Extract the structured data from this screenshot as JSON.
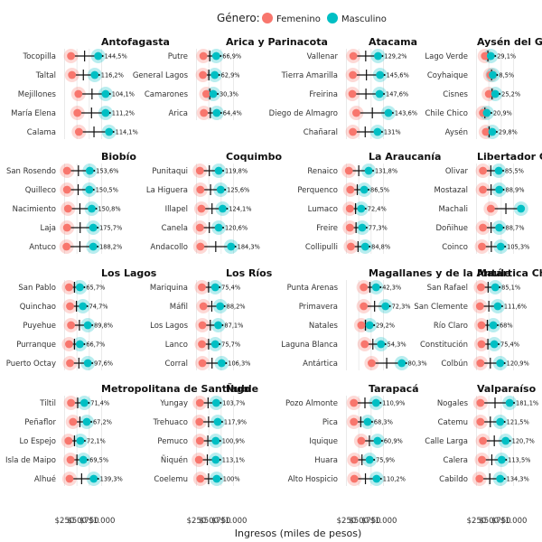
{
  "legend": {
    "title": "Género:",
    "female_label": "Femenino",
    "male_label": "Masculino"
  },
  "colors": {
    "female": "#F8766D",
    "male": "#00BFC4",
    "grid": "#e6e6e6",
    "line": "#111111"
  },
  "chart_data": {
    "type": "dumbbell",
    "xlabel": "Ingresos (miles de pesos)",
    "x_ticks": [
      "$250",
      "$500",
      "$750",
      "$1.000"
    ],
    "panels": [
      {
        "title": "Antofagasta",
        "rows": [
          {
            "label": "Tocopilla",
            "f": 380,
            "m": 930,
            "pct": "144,5%"
          },
          {
            "label": "Taltal",
            "f": 400,
            "m": 860,
            "pct": "116,2%"
          },
          {
            "label": "Mejillones",
            "f": 530,
            "m": 1080,
            "pct": "104,1%"
          },
          {
            "label": "María Elena",
            "f": 510,
            "m": 1080,
            "pct": "111,2%"
          },
          {
            "label": "Calama",
            "f": 540,
            "m": 1150,
            "pct": "114,1%"
          }
        ]
      },
      {
        "title": "Arica y Parinacota",
        "rows": [
          {
            "label": "Putre",
            "f": 390,
            "m": 650,
            "pct": "66,9%"
          },
          {
            "label": "General Lagos",
            "f": 380,
            "m": 620,
            "pct": "62,9%"
          },
          {
            "label": "Camarones",
            "f": 450,
            "m": 590,
            "pct": "30,3%"
          },
          {
            "label": "Arica",
            "f": 400,
            "m": 660,
            "pct": "64,4%"
          }
        ]
      },
      {
        "title": "Atacama",
        "rows": [
          {
            "label": "Vallenar",
            "f": 390,
            "m": 890,
            "pct": "129,2%"
          },
          {
            "label": "Tierra Amarilla",
            "f": 380,
            "m": 930,
            "pct": "145,6%"
          },
          {
            "label": "Freirina",
            "f": 370,
            "m": 920,
            "pct": "147,6%"
          },
          {
            "label": "Diego de Almagro",
            "f": 450,
            "m": 1100,
            "pct": "143,6%"
          },
          {
            "label": "Chañaral",
            "f": 380,
            "m": 880,
            "pct": "131%"
          }
        ]
      },
      {
        "title": "Aysén del General Carlos Ibáñez del Campo",
        "rows": [
          {
            "label": "Lago Verde",
            "f": 420,
            "m": 540,
            "pct": "29,1%"
          },
          {
            "label": "Coyhaique",
            "f": 530,
            "m": 580,
            "pct": "8,5%"
          },
          {
            "label": "Cisnes",
            "f": 500,
            "m": 630,
            "pct": "25,2%"
          },
          {
            "label": "Chile Chico",
            "f": 380,
            "m": 460,
            "pct": "20,9%"
          },
          {
            "label": "Aysén",
            "f": 440,
            "m": 570,
            "pct": "29,8%"
          }
        ]
      },
      {
        "title": "Biobío",
        "rows": [
          {
            "label": "San Rosendo",
            "f": 300,
            "m": 760,
            "pct": "153,6%"
          },
          {
            "label": "Quilleco",
            "f": 300,
            "m": 750,
            "pct": "150,5%"
          },
          {
            "label": "Nacimiento",
            "f": 320,
            "m": 800,
            "pct": "150,8%"
          },
          {
            "label": "Laja",
            "f": 300,
            "m": 830,
            "pct": "175,7%"
          },
          {
            "label": "Antuco",
            "f": 290,
            "m": 830,
            "pct": "188,2%"
          }
        ]
      },
      {
        "title": "Coquimbo",
        "rows": [
          {
            "label": "Punitaqui",
            "f": 320,
            "m": 700,
            "pct": "119,8%"
          },
          {
            "label": "La Higuera",
            "f": 330,
            "m": 740,
            "pct": "125,6%"
          },
          {
            "label": "Illapel",
            "f": 350,
            "m": 780,
            "pct": "124,1%"
          },
          {
            "label": "Canela",
            "f": 320,
            "m": 700,
            "pct": "120,6%"
          },
          {
            "label": "Andacollo",
            "f": 330,
            "m": 950,
            "pct": "184,3%"
          }
        ]
      },
      {
        "title": "La Araucanía",
        "rows": [
          {
            "label": "Renaico",
            "f": 300,
            "m": 700,
            "pct": "131,8%"
          },
          {
            "label": "Perquenco",
            "f": 330,
            "m": 610,
            "pct": "86,5%"
          },
          {
            "label": "Lumaco",
            "f": 320,
            "m": 550,
            "pct": "72,4%"
          },
          {
            "label": "Freire",
            "f": 320,
            "m": 570,
            "pct": "77,3%"
          },
          {
            "label": "Collipulli",
            "f": 340,
            "m": 630,
            "pct": "84,8%"
          }
        ]
      },
      {
        "title": "Libertador General Bernardo O'Higgins",
        "rows": [
          {
            "label": "Olivar",
            "f": 380,
            "m": 700,
            "pct": "85,5%"
          },
          {
            "label": "Mostazal",
            "f": 380,
            "m": 710,
            "pct": "88,9%"
          },
          {
            "label": "Machali",
            "f": 540,
            "m": 1150,
            "pct": ""
          },
          {
            "label": "Doñihue",
            "f": 380,
            "m": 710,
            "pct": "88,7%"
          },
          {
            "label": "Coinco",
            "f": 360,
            "m": 740,
            "pct": "105,3%"
          }
        ]
      },
      {
        "title": "Los Lagos",
        "rows": [
          {
            "label": "San Pablo",
            "f": 340,
            "m": 560,
            "pct": "65,7%"
          },
          {
            "label": "Quinchao",
            "f": 360,
            "m": 620,
            "pct": "74,7%"
          },
          {
            "label": "Puyehue",
            "f": 380,
            "m": 720,
            "pct": "89,8%"
          },
          {
            "label": "Purranque",
            "f": 340,
            "m": 560,
            "pct": "66,7%"
          },
          {
            "label": "Puerto Octay",
            "f": 360,
            "m": 720,
            "pct": "97,6%"
          }
        ]
      },
      {
        "title": "Los Ríos",
        "rows": [
          {
            "label": "Mariquina",
            "f": 360,
            "m": 630,
            "pct": "75,4%"
          },
          {
            "label": "Máfil",
            "f": 390,
            "m": 730,
            "pct": "88,2%"
          },
          {
            "label": "Los Lagos",
            "f": 370,
            "m": 690,
            "pct": "87,1%"
          },
          {
            "label": "Lanco",
            "f": 360,
            "m": 630,
            "pct": "75,7%"
          },
          {
            "label": "Corral",
            "f": 370,
            "m": 760,
            "pct": "106,3%"
          }
        ]
      },
      {
        "title": "Magallanes y de la Antártica Chilena",
        "rows": [
          {
            "label": "Punta Arenas",
            "f": 600,
            "m": 850,
            "pct": "42,3%"
          },
          {
            "label": "Primavera",
            "f": 600,
            "m": 1040,
            "pct": "72,3%"
          },
          {
            "label": "Natales",
            "f": 550,
            "m": 720,
            "pct": "29,2%"
          },
          {
            "label": "Laguna Blanca",
            "f": 620,
            "m": 950,
            "pct": "54,3%"
          },
          {
            "label": "Antártica",
            "f": 760,
            "m": 1370,
            "pct": "80,3%"
          }
        ]
      },
      {
        "title": "Maule",
        "rows": [
          {
            "label": "San Rafael",
            "f": 340,
            "m": 630,
            "pct": "85,1%"
          },
          {
            "label": "San Clemente",
            "f": 320,
            "m": 680,
            "pct": "111,6%"
          },
          {
            "label": "Río Claro",
            "f": 350,
            "m": 590,
            "pct": "68%"
          },
          {
            "label": "Constitución",
            "f": 350,
            "m": 610,
            "pct": "75,4%"
          },
          {
            "label": "Colbún",
            "f": 330,
            "m": 730,
            "pct": "120,9%"
          }
        ]
      },
      {
        "title": "Metropolitana de Santiago",
        "rows": [
          {
            "label": "Tiltil",
            "f": 380,
            "m": 650,
            "pct": "71,4%"
          },
          {
            "label": "Peñaflor",
            "f": 420,
            "m": 700,
            "pct": "67,2%"
          },
          {
            "label": "Lo Espejo",
            "f": 330,
            "m": 570,
            "pct": "72,1%"
          },
          {
            "label": "Isla de Maipo",
            "f": 370,
            "m": 630,
            "pct": "69,5%"
          },
          {
            "label": "Alhué",
            "f": 350,
            "m": 840,
            "pct": "139,3%"
          }
        ]
      },
      {
        "title": "Ñuble",
        "rows": [
          {
            "label": "Yungay",
            "f": 320,
            "m": 650,
            "pct": "103,7%"
          },
          {
            "label": "Trehuaco",
            "f": 310,
            "m": 680,
            "pct": "117,9%"
          },
          {
            "label": "Pemuco",
            "f": 320,
            "m": 640,
            "pct": "100,9%"
          },
          {
            "label": "Ñiquén",
            "f": 300,
            "m": 640,
            "pct": "113,1%"
          },
          {
            "label": "Coelemu",
            "f": 330,
            "m": 660,
            "pct": "100%"
          }
        ]
      },
      {
        "title": "Tarapacá",
        "rows": [
          {
            "label": "Pozo Almonte",
            "f": 400,
            "m": 850,
            "pct": "110,9%"
          },
          {
            "label": "Pica",
            "f": 400,
            "m": 680,
            "pct": "68,3%"
          },
          {
            "label": "Iquique",
            "f": 550,
            "m": 880,
            "pct": "60,9%"
          },
          {
            "label": "Huara",
            "f": 410,
            "m": 720,
            "pct": "75,9%"
          },
          {
            "label": "Alto Hospicio",
            "f": 410,
            "m": 860,
            "pct": "110,2%"
          }
        ]
      },
      {
        "title": "Valparaíso",
        "rows": [
          {
            "label": "Nogales",
            "f": 330,
            "m": 920,
            "pct": "181,1%"
          },
          {
            "label": "Catemu",
            "f": 330,
            "m": 730,
            "pct": "121,5%"
          },
          {
            "label": "Calle Larga",
            "f": 380,
            "m": 840,
            "pct": "120,7%"
          },
          {
            "label": "Calera",
            "f": 360,
            "m": 760,
            "pct": "113,5%"
          },
          {
            "label": "Cabildo",
            "f": 310,
            "m": 730,
            "pct": "134,3%"
          }
        ]
      }
    ]
  }
}
